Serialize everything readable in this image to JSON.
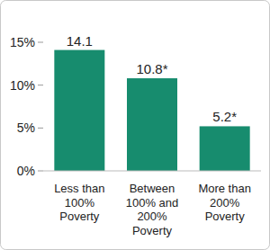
{
  "chart_data": {
    "type": "bar",
    "categories": [
      "Less than 100% Poverty",
      "Between 100% and 200% Poverty",
      "More than 200% Poverty"
    ],
    "values": [
      14.1,
      10.8,
      5.2
    ],
    "value_labels": [
      "14.1",
      "10.8*",
      "5.2*"
    ],
    "color": "#178c6e",
    "ylim": [
      0,
      15
    ],
    "yticks": [
      {
        "value": 0,
        "label": "0%"
      },
      {
        "value": 5,
        "label": "5%"
      },
      {
        "value": 10,
        "label": "10%"
      },
      {
        "value": 15,
        "label": "15%"
      }
    ],
    "data_labels": true,
    "grid": false
  }
}
